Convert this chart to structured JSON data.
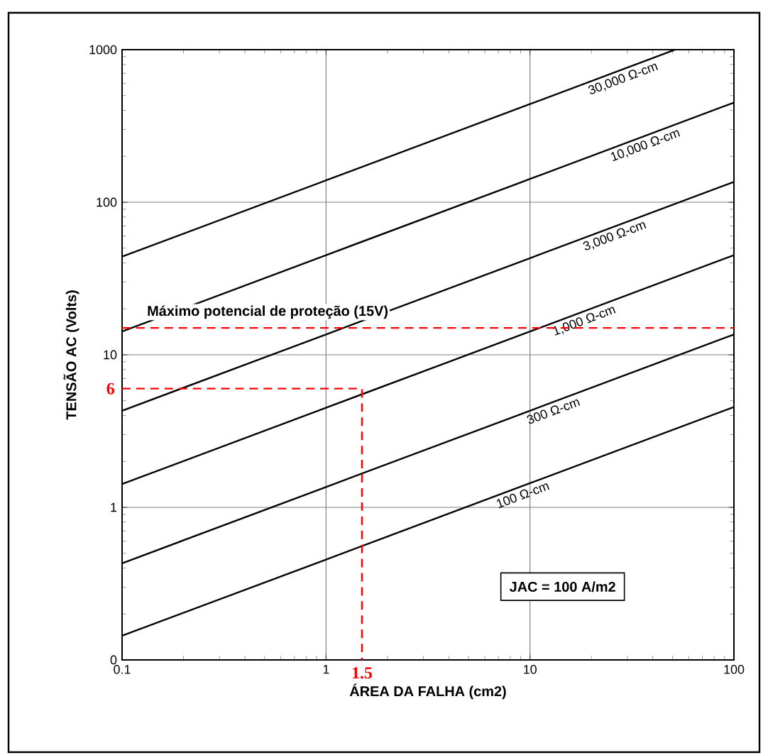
{
  "chart_data": {
    "type": "line",
    "xlabel": "ÁREA DA FALHA (cm2)",
    "ylabel": "TENSÃO AC (Volts)",
    "log": "xy",
    "grid": true,
    "xlim": [
      0.1,
      100
    ],
    "xticks": [
      0.1,
      1,
      10,
      100
    ],
    "ylim": [
      0.1,
      1000
    ],
    "yticks": [
      {
        "value": 0.1,
        "label": "0"
      },
      1,
      10,
      100,
      1000
    ],
    "series": [
      {
        "name": "30,000 Ω-cm",
        "color": "#000000",
        "x": [
          0.1,
          1,
          10,
          51.6
        ],
        "values": [
          44,
          139,
          440,
          1000
        ]
      },
      {
        "name": "10,000 Ω-cm",
        "color": "#000000",
        "x": [
          0.1,
          1,
          10,
          100
        ],
        "values": [
          14.2,
          45,
          142,
          450
        ]
      },
      {
        "name": "3,000 Ω-cm",
        "color": "#000000",
        "x": [
          0.1,
          1,
          10,
          100
        ],
        "values": [
          4.3,
          13.6,
          43,
          136
        ]
      },
      {
        "name": "1,000 Ω-cm",
        "color": "#000000",
        "x": [
          0.1,
          1,
          10,
          100
        ],
        "values": [
          1.42,
          4.5,
          14.2,
          45
        ]
      },
      {
        "name": "300 Ω-cm",
        "color": "#000000",
        "x": [
          0.1,
          1,
          10,
          100
        ],
        "values": [
          0.43,
          1.36,
          4.3,
          13.6
        ]
      },
      {
        "name": "100 Ω-cm",
        "color": "#000000",
        "x": [
          0.1,
          1,
          10,
          100
        ],
        "values": [
          0.144,
          0.455,
          1.44,
          4.55
        ]
      },
      {
        "color": "#ff0000",
        "line_style": "dashed",
        "x": [
          0.1,
          1.5,
          1.5
        ],
        "values": [
          6,
          6,
          0.1
        ]
      }
    ],
    "ref_lines": [
      {
        "axis": "y",
        "value": 15,
        "label": "Máximo potencial de proteção (15V)",
        "color": "#ff0000",
        "line_style": "dashed"
      }
    ],
    "annotations": [
      {
        "text": "6",
        "x": 0.1,
        "y": 6
      },
      {
        "text": "1.5",
        "x": 1.5,
        "y": 0.1
      },
      "JAC = 100 A/m2"
    ]
  }
}
